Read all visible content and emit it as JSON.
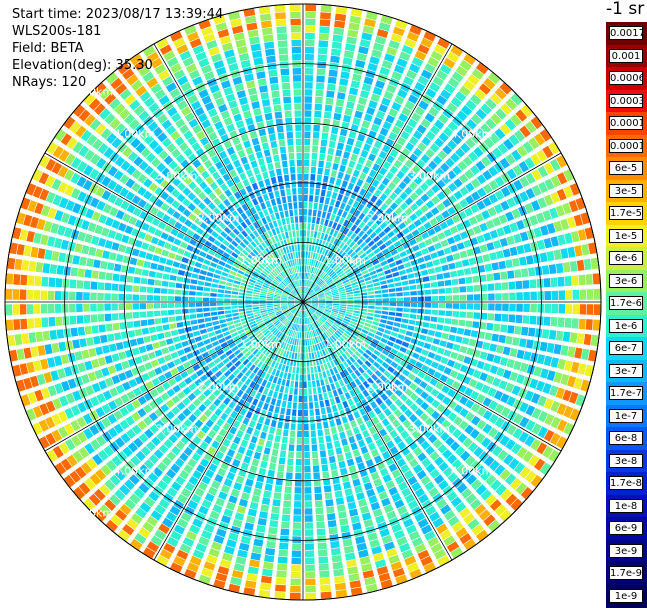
{
  "header": {
    "start_time": "Start time: 2023/08/17 13:39:44",
    "device": "WLS200s-181",
    "field": "Field: BETA",
    "elevation": "Elevation(deg): 35.30",
    "nrays": "NRays: 120"
  },
  "colorbar": {
    "unit": "-1 sr",
    "labels": [
      "0.0017",
      "0.001",
      "0.0006",
      "0.0003",
      "0.00017",
      "0.0001",
      "6e-5",
      "3e-5",
      "1.7e-5",
      "1e-5",
      "6e-6",
      "3e-6",
      "1.7e-6",
      "1e-6",
      "6e-7",
      "3e-7",
      "1.7e-7",
      "1e-7",
      "6e-8",
      "3e-8",
      "1.7e-8",
      "1e-8",
      "6e-9",
      "3e-9",
      "1.7e-9",
      "1e-9"
    ],
    "colors": [
      "#6e0000",
      "#990000",
      "#cc0000",
      "#ee1010",
      "#ff4400",
      "#ff6a00",
      "#ff8c00",
      "#ffb000",
      "#ffd400",
      "#f0f028",
      "#c8f040",
      "#98f060",
      "#60f0a0",
      "#30f0d0",
      "#10d8f0",
      "#10b8f8",
      "#1098ff",
      "#0a78ff",
      "#0a58f0",
      "#0838e0",
      "#0620d0",
      "#0410b8",
      "#0208a0",
      "#020488",
      "#020270",
      "#000058"
    ]
  },
  "chart_data": {
    "type": "heatmap",
    "projection": "polar (PPI scan)",
    "rays": 120,
    "max_range_km": 5.0,
    "range_ring_labels": [
      "1.00km",
      "2.00km",
      "3.00km",
      "4.00km",
      "5.00km"
    ],
    "color_scale": "log",
    "value_min": 1e-09,
    "value_max": 0.0017,
    "dominant_color": "#1098ff",
    "outer_ring_color": "#ffd400",
    "grid": true
  }
}
